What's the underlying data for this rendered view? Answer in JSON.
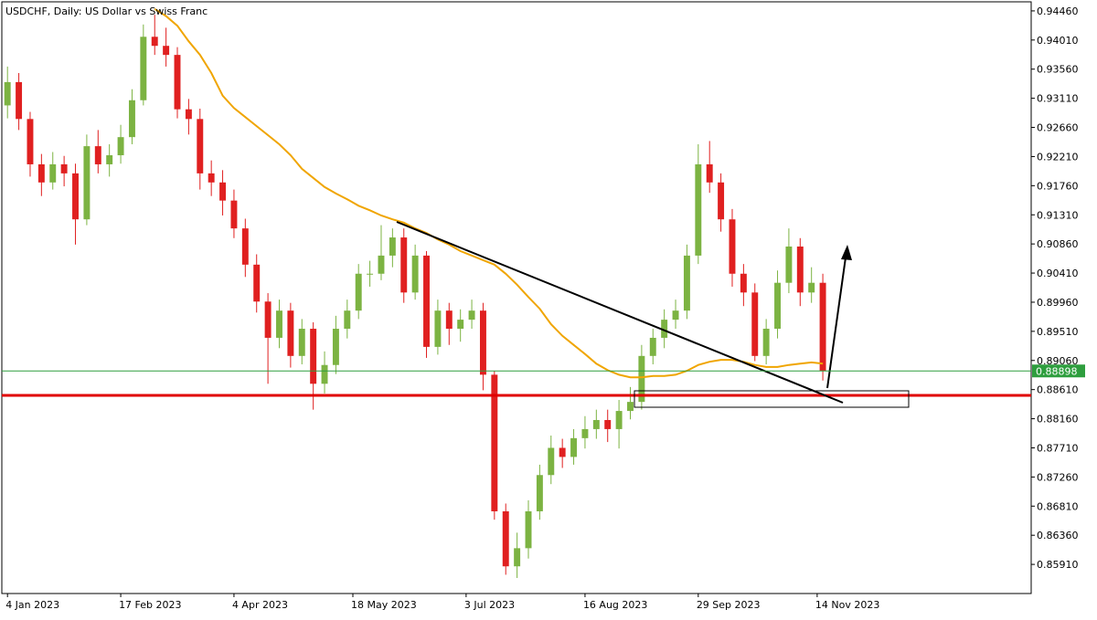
{
  "chart_data": {
    "type": "candlestick",
    "title": "USDCHF, Daily:  US Dollar vs Swiss Franc",
    "up_color": "#7cb342",
    "down_color": "#e02020",
    "x": [
      0,
      1,
      2,
      3,
      4,
      5,
      6,
      7,
      8,
      9,
      10,
      11,
      12,
      13,
      14,
      15,
      16,
      17,
      18,
      19,
      20,
      21,
      22,
      23,
      24,
      25,
      26,
      27,
      28,
      29,
      30,
      31,
      32,
      33,
      34,
      35,
      36,
      37,
      38,
      39,
      40,
      41,
      42,
      43,
      44,
      45,
      46,
      47,
      48,
      49,
      50,
      51,
      52,
      53,
      54,
      55,
      56,
      57,
      58,
      59,
      60,
      61,
      62,
      63,
      64,
      65,
      66,
      67,
      68,
      69,
      70,
      71,
      72
    ],
    "open": [
      0.93,
      0.9336,
      0.9279,
      0.9209,
      0.9181,
      0.9209,
      0.9195,
      0.9124,
      0.9237,
      0.9209,
      0.9223,
      0.9251,
      0.9308,
      0.9406,
      0.9392,
      0.9378,
      0.9294,
      0.9279,
      0.9195,
      0.9181,
      0.9153,
      0.911,
      0.9054,
      0.8997,
      0.8941,
      0.8983,
      0.8913,
      0.8955,
      0.887,
      0.8899,
      0.8955,
      0.8983,
      0.904,
      0.904,
      0.9068,
      0.9096,
      0.9011,
      0.9068,
      0.8927,
      0.8983,
      0.8955,
      0.8969,
      0.8983,
      0.8884,
      0.8673,
      0.8588,
      0.8616,
      0.8673,
      0.8729,
      0.8771,
      0.8757,
      0.8786,
      0.88,
      0.8814,
      0.88,
      0.8828,
      0.8842,
      0.8913,
      0.8941,
      0.8969,
      0.8983,
      0.9068,
      0.9209,
      0.9181,
      0.9124,
      0.904,
      0.9011,
      0.8913,
      0.8955,
      0.9026,
      0.9082,
      0.9011,
      0.9026
    ],
    "high": [
      0.936,
      0.935,
      0.929,
      0.9225,
      0.9228,
      0.9222,
      0.921,
      0.9255,
      0.9262,
      0.924,
      0.927,
      0.9325,
      0.9425,
      0.944,
      0.942,
      0.939,
      0.931,
      0.9295,
      0.9215,
      0.92,
      0.917,
      0.9125,
      0.907,
      0.901,
      0.9,
      0.8995,
      0.897,
      0.8965,
      0.892,
      0.8975,
      0.9,
      0.9055,
      0.906,
      0.9115,
      0.911,
      0.911,
      0.9085,
      0.9075,
      0.9,
      0.8995,
      0.8985,
      0.9,
      0.8995,
      0.889,
      0.8685,
      0.864,
      0.869,
      0.8745,
      0.879,
      0.8785,
      0.88,
      0.882,
      0.883,
      0.883,
      0.8845,
      0.8865,
      0.893,
      0.8955,
      0.8985,
      0.9,
      0.9085,
      0.924,
      0.9245,
      0.9195,
      0.914,
      0.9055,
      0.9025,
      0.897,
      0.9045,
      0.911,
      0.9095,
      0.905,
      0.904
    ],
    "low": [
      0.928,
      0.9262,
      0.919,
      0.916,
      0.917,
      0.9175,
      0.9085,
      0.9115,
      0.9195,
      0.919,
      0.921,
      0.924,
      0.93,
      0.9378,
      0.936,
      0.928,
      0.9255,
      0.917,
      0.916,
      0.913,
      0.9095,
      0.9035,
      0.898,
      0.887,
      0.8925,
      0.8895,
      0.89,
      0.883,
      0.8855,
      0.8885,
      0.894,
      0.897,
      0.902,
      0.903,
      0.905,
      0.8995,
      0.9,
      0.891,
      0.8915,
      0.893,
      0.8935,
      0.8955,
      0.886,
      0.866,
      0.8575,
      0.857,
      0.86,
      0.866,
      0.8715,
      0.874,
      0.8745,
      0.877,
      0.8785,
      0.878,
      0.877,
      0.8815,
      0.883,
      0.89,
      0.8925,
      0.8955,
      0.897,
      0.9055,
      0.9165,
      0.9105,
      0.902,
      0.899,
      0.8905,
      0.89,
      0.894,
      0.901,
      0.899,
      0.8995,
      0.8875
    ],
    "close": [
      0.9336,
      0.9279,
      0.9209,
      0.9181,
      0.9209,
      0.9195,
      0.9124,
      0.9237,
      0.9209,
      0.9223,
      0.9251,
      0.9308,
      0.9406,
      0.9392,
      0.9378,
      0.9294,
      0.9279,
      0.9195,
      0.9181,
      0.9153,
      0.911,
      0.9054,
      0.8997,
      0.8941,
      0.8983,
      0.8913,
      0.8955,
      0.887,
      0.8899,
      0.8955,
      0.8983,
      0.904,
      0.904,
      0.9068,
      0.9096,
      0.9011,
      0.9068,
      0.8927,
      0.8983,
      0.8955,
      0.8969,
      0.8983,
      0.8884,
      0.8673,
      0.8588,
      0.8616,
      0.8673,
      0.8729,
      0.8771,
      0.8757,
      0.8786,
      0.88,
      0.8814,
      0.88,
      0.8828,
      0.8842,
      0.8913,
      0.8941,
      0.8969,
      0.8983,
      0.9068,
      0.9209,
      0.9181,
      0.9124,
      0.904,
      0.9011,
      0.8913,
      0.8955,
      0.9026,
      0.9082,
      0.9011,
      0.9026,
      0.88898
    ],
    "moving_average": {
      "color": "#f0a500",
      "values": [
        null,
        null,
        null,
        null,
        null,
        null,
        null,
        null,
        null,
        null,
        null,
        null,
        null,
        0.9449,
        0.9438,
        0.9423,
        0.9399,
        0.9378,
        0.935,
        0.9315,
        0.9296,
        0.9282,
        0.9268,
        0.9254,
        0.924,
        0.9223,
        0.9202,
        0.9188,
        0.9174,
        0.9164,
        0.9155,
        0.9145,
        0.9138,
        0.913,
        0.9124,
        0.9119,
        0.911,
        0.9103,
        0.9093,
        0.9085,
        0.9075,
        0.9068,
        0.9061,
        0.9054,
        0.904,
        0.9023,
        0.9004,
        0.8986,
        0.8962,
        0.8944,
        0.893,
        0.8916,
        0.8901,
        0.8891,
        0.8884,
        0.888,
        0.888,
        0.8882,
        0.8882,
        0.8884,
        0.889,
        0.8899,
        0.8904,
        0.8907,
        0.8907,
        0.8904,
        0.8899,
        0.8896,
        0.8896,
        0.8899,
        0.8901,
        0.8903,
        0.8901
      ]
    },
    "current_price": {
      "value": 0.88898,
      "color": "#2e9e3e"
    },
    "xlim": [
      -0.5,
      90.4
    ],
    "xticks": [
      {
        "value": 0,
        "label": "4 Jan 2023"
      },
      {
        "value": 10,
        "label": "17 Feb 2023"
      },
      {
        "value": 20,
        "label": "4 Apr 2023"
      },
      {
        "value": 30.5,
        "label": "18 May 2023"
      },
      {
        "value": 40.5,
        "label": "3 Jul 2023"
      },
      {
        "value": 51,
        "label": "16 Aug 2023"
      },
      {
        "value": 61,
        "label": "29 Sep 2023"
      },
      {
        "value": 71.5,
        "label": "14 Nov 2023"
      }
    ],
    "ylim": [
      0.8546,
      0.946
    ],
    "yticks": [
      {
        "value": 0.9446,
        "label": "0.94460"
      },
      {
        "value": 0.9401,
        "label": "0.94010"
      },
      {
        "value": 0.9356,
        "label": "0.93560"
      },
      {
        "value": 0.9311,
        "label": "0.93110"
      },
      {
        "value": 0.9266,
        "label": "0.92660"
      },
      {
        "value": 0.9221,
        "label": "0.92210"
      },
      {
        "value": 0.9176,
        "label": "0.91760"
      },
      {
        "value": 0.9131,
        "label": "0.91310"
      },
      {
        "value": 0.9086,
        "label": "0.90860"
      },
      {
        "value": 0.9041,
        "label": "0.90410"
      },
      {
        "value": 0.8996,
        "label": "0.89960"
      },
      {
        "value": 0.8951,
        "label": "0.89510"
      },
      {
        "value": 0.8906,
        "label": "0.89060"
      },
      {
        "value": 0.8861,
        "label": "0.88610"
      },
      {
        "value": 0.8816,
        "label": "0.88160"
      },
      {
        "value": 0.8771,
        "label": "0.87710"
      },
      {
        "value": 0.8726,
        "label": "0.87260"
      },
      {
        "value": 0.8681,
        "label": "0.86810"
      },
      {
        "value": 0.8636,
        "label": "0.86360"
      },
      {
        "value": 0.8591,
        "label": "0.85910"
      }
    ]
  }
}
